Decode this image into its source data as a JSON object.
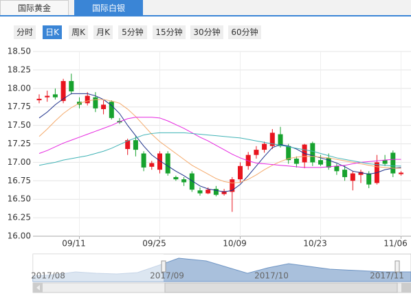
{
  "tabs": [
    "国际黄金",
    "国际白银"
  ],
  "period_buttons": [
    "分时",
    "日K",
    "周K",
    "月K",
    "5分钟",
    "15分钟",
    "30分钟",
    "60分钟"
  ],
  "chart_data": {
    "type": "candlestick",
    "categories": [
      null,
      null,
      null,
      null,
      null,
      "09/11",
      null,
      null,
      null,
      null,
      null,
      null,
      null,
      null,
      null,
      "09/25",
      null,
      null,
      null,
      null,
      null,
      null,
      null,
      null,
      null,
      "10/09",
      null,
      null,
      null,
      null,
      null,
      null,
      null,
      null,
      null,
      "10/23",
      null,
      null,
      null,
      null,
      null,
      null,
      null,
      null,
      null,
      "11/06"
    ],
    "open": [
      17.84,
      17.88,
      17.92,
      17.83,
      18.1,
      17.82,
      17.8,
      17.88,
      17.72,
      17.82,
      17.56,
      17.18,
      17.3,
      17.12,
      16.94,
      16.9,
      17.12,
      16.8,
      16.77,
      16.85,
      16.62,
      16.58,
      16.64,
      16.57,
      16.6,
      16.77,
      16.95,
      17.1,
      17.17,
      17.22,
      17.38,
      17.22,
      17.05,
      17.0,
      17.26,
      17.03,
      17.06,
      16.95,
      16.9,
      16.75,
      16.83,
      16.85,
      16.72,
      17.03,
      17.13,
      16.84
    ],
    "high": [
      17.92,
      17.97,
      18.0,
      18.13,
      18.2,
      17.88,
      17.95,
      17.95,
      17.84,
      17.84,
      17.6,
      17.32,
      17.35,
      17.15,
      17.02,
      17.15,
      17.15,
      16.82,
      16.8,
      16.88,
      16.66,
      16.66,
      16.68,
      16.64,
      16.8,
      17.0,
      17.14,
      17.22,
      17.28,
      17.45,
      17.48,
      17.25,
      17.08,
      17.25,
      17.28,
      17.1,
      17.12,
      16.98,
      16.96,
      16.88,
      16.9,
      16.88,
      17.1,
      17.1,
      17.16,
      16.88
    ],
    "low": [
      17.8,
      17.82,
      17.85,
      17.8,
      17.92,
      17.73,
      17.77,
      17.68,
      17.65,
      17.58,
      17.52,
      17.1,
      17.08,
      16.88,
      16.9,
      16.85,
      16.82,
      16.75,
      16.68,
      16.6,
      16.55,
      16.57,
      16.54,
      16.55,
      16.33,
      16.72,
      16.9,
      17.05,
      17.13,
      17.18,
      17.2,
      16.98,
      16.93,
      16.92,
      16.95,
      16.95,
      16.9,
      16.83,
      16.75,
      16.62,
      16.72,
      16.65,
      16.7,
      16.95,
      16.8,
      16.82
    ],
    "close": [
      17.86,
      17.9,
      17.88,
      18.1,
      17.96,
      17.78,
      17.9,
      17.73,
      17.78,
      17.6,
      17.54,
      17.3,
      17.17,
      16.93,
      16.99,
      17.12,
      16.85,
      16.77,
      16.73,
      16.63,
      16.58,
      16.63,
      16.56,
      16.61,
      16.77,
      16.95,
      17.1,
      17.17,
      17.25,
      17.4,
      17.22,
      17.03,
      16.98,
      17.24,
      17.0,
      16.97,
      16.93,
      16.88,
      16.8,
      16.85,
      16.87,
      16.7,
      17.0,
      16.98,
      16.85,
      16.86
    ],
    "up_color": "#e8141e",
    "down_color": "#17a22e",
    "lines": [
      {
        "color": "#1c2f8a",
        "values": [
          17.6,
          17.68,
          17.78,
          17.86,
          17.93,
          17.93,
          17.93,
          17.9,
          17.85,
          17.77,
          17.66,
          17.5,
          17.36,
          17.22,
          17.1,
          17.02,
          16.95,
          16.88,
          16.82,
          16.75,
          16.68,
          16.64,
          16.62,
          16.6,
          16.62,
          16.7,
          16.82,
          16.95,
          17.08,
          17.2,
          17.24,
          17.22,
          17.18,
          17.12,
          17.09,
          17.06,
          17.03,
          16.99,
          16.94,
          16.88,
          16.86,
          16.84,
          16.86,
          16.9,
          16.92,
          16.93
        ]
      },
      {
        "color": "#f4a96a",
        "values": [
          17.35,
          17.45,
          17.56,
          17.66,
          17.74,
          17.8,
          17.83,
          17.85,
          17.85,
          17.83,
          17.8,
          17.72,
          17.62,
          17.5,
          17.38,
          17.28,
          17.2,
          17.12,
          17.04,
          16.96,
          16.9,
          16.84,
          16.78,
          16.74,
          16.72,
          16.73,
          16.77,
          16.83,
          16.9,
          16.96,
          17.01,
          17.05,
          17.07,
          17.08,
          17.08,
          17.07,
          17.06,
          17.04,
          17.02,
          17.0,
          16.98,
          16.96,
          16.94,
          16.93,
          16.92,
          16.92
        ]
      },
      {
        "color": "#e626e0",
        "values": [
          17.12,
          17.16,
          17.21,
          17.26,
          17.3,
          17.34,
          17.38,
          17.42,
          17.46,
          17.5,
          17.55,
          17.59,
          17.61,
          17.61,
          17.61,
          17.6,
          17.56,
          17.51,
          17.46,
          17.4,
          17.34,
          17.29,
          17.23,
          17.17,
          17.11,
          17.06,
          17.02,
          16.99,
          16.98,
          16.97,
          16.96,
          16.95,
          16.94,
          16.93,
          16.93,
          16.93,
          16.94,
          16.95,
          16.96,
          16.98,
          17.0,
          17.01,
          17.02,
          17.03,
          17.04,
          17.04
        ]
      },
      {
        "color": "#3fb2b5",
        "values": [
          16.96,
          16.98,
          17.0,
          17.03,
          17.05,
          17.07,
          17.09,
          17.12,
          17.15,
          17.19,
          17.24,
          17.29,
          17.33,
          17.37,
          17.39,
          17.4,
          17.4,
          17.4,
          17.4,
          17.39,
          17.38,
          17.37,
          17.36,
          17.35,
          17.34,
          17.33,
          17.31,
          17.29,
          17.27,
          17.25,
          17.23,
          17.21,
          17.19,
          17.17,
          17.15,
          17.12,
          17.09,
          17.06,
          17.04,
          17.02,
          17.0,
          16.98,
          16.97,
          16.96,
          16.95,
          16.95
        ]
      }
    ],
    "ylim": [
      16,
      18.5
    ],
    "yticks": [
      {
        "value": 16,
        "label": "16.00"
      },
      {
        "value": 16.25,
        "label": "16.25"
      },
      {
        "value": 16.5,
        "label": "16.50"
      },
      {
        "value": 16.75,
        "label": "16.75"
      },
      {
        "value": 17,
        "label": "17.00"
      },
      {
        "value": 17.25,
        "label": "17.25"
      },
      {
        "value": 17.5,
        "label": "17.50"
      },
      {
        "value": 17.75,
        "label": "17.75"
      },
      {
        "value": 18,
        "label": "18.00"
      },
      {
        "value": 18.25,
        "label": "18.25"
      },
      {
        "value": 18.5,
        "label": "18.50"
      }
    ],
    "grid": true
  },
  "navigator": {
    "labels": [
      "2017/08",
      "2017/09",
      "2017/10",
      "2017/11"
    ]
  }
}
